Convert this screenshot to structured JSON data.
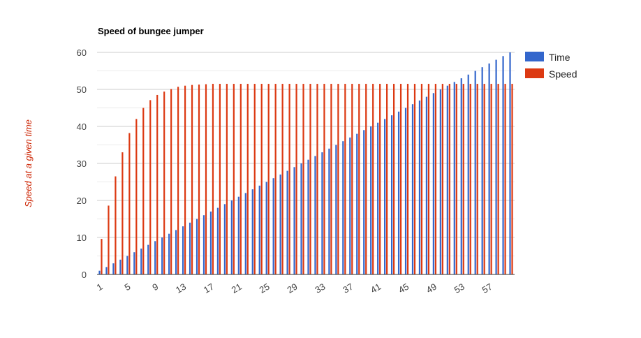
{
  "colors": {
    "time": "#3366cc",
    "speed": "#dc3912",
    "grid": "#cccccc",
    "minorGrid": "#ebebeb",
    "axis": "#333333"
  },
  "chart_data": {
    "type": "bar",
    "title": "Speed of bungee jumper",
    "xlabel": "",
    "ylabel": "Speed at a given time",
    "ylim": [
      0,
      60
    ],
    "yticks": [
      "0",
      "10",
      "20",
      "30",
      "40",
      "50",
      "60"
    ],
    "xticks": [
      "1",
      "5",
      "9",
      "13",
      "17",
      "21",
      "25",
      "29",
      "33",
      "37",
      "41",
      "45",
      "49",
      "53",
      "57"
    ],
    "legend_position": "right",
    "categories": [
      1,
      2,
      3,
      4,
      5,
      6,
      7,
      8,
      9,
      10,
      11,
      12,
      13,
      14,
      15,
      16,
      17,
      18,
      19,
      20,
      21,
      22,
      23,
      24,
      25,
      26,
      27,
      28,
      29,
      30,
      31,
      32,
      33,
      34,
      35,
      36,
      37,
      38,
      39,
      40,
      41,
      42,
      43,
      44,
      45,
      46,
      47,
      48,
      49,
      50,
      51,
      52,
      53,
      54,
      55,
      56,
      57,
      58,
      59,
      60
    ],
    "series": [
      {
        "name": "Time",
        "values": [
          1,
          2,
          3,
          4,
          5,
          6,
          7,
          8,
          9,
          10,
          11,
          12,
          13,
          14,
          15,
          16,
          17,
          18,
          19,
          20,
          21,
          22,
          23,
          24,
          25,
          26,
          27,
          28,
          29,
          30,
          31,
          32,
          33,
          34,
          35,
          36,
          37,
          38,
          39,
          40,
          41,
          42,
          43,
          44,
          45,
          46,
          47,
          48,
          49,
          50,
          51,
          52,
          53,
          54,
          55,
          56,
          57,
          58,
          59,
          60
        ]
      },
      {
        "name": "Speed",
        "values": [
          9.6,
          18.6,
          26.5,
          33.0,
          38.2,
          42.0,
          45.0,
          47.1,
          48.5,
          49.4,
          50.1,
          50.7,
          51.0,
          51.2,
          51.3,
          51.4,
          51.5,
          51.5,
          51.5,
          51.5,
          51.5,
          51.5,
          51.5,
          51.5,
          51.5,
          51.5,
          51.5,
          51.5,
          51.5,
          51.5,
          51.5,
          51.5,
          51.5,
          51.5,
          51.5,
          51.5,
          51.5,
          51.5,
          51.5,
          51.5,
          51.5,
          51.5,
          51.5,
          51.5,
          51.5,
          51.5,
          51.5,
          51.5,
          51.5,
          51.5,
          51.5,
          51.5,
          51.5,
          51.5,
          51.5,
          51.5,
          51.5,
          51.5,
          51.5,
          51.5
        ]
      }
    ]
  }
}
